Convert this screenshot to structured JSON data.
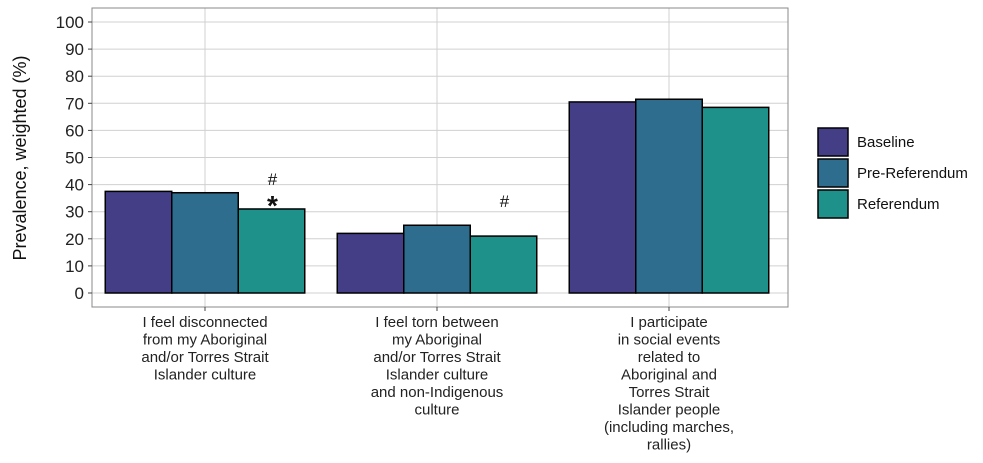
{
  "chart_data": {
    "type": "bar",
    "title": "",
    "xlabel": "",
    "ylabel": "Prevalence, weighted (%)",
    "ylim": [
      0,
      100
    ],
    "yticks": [
      0,
      10,
      20,
      30,
      40,
      50,
      60,
      70,
      80,
      90,
      100
    ],
    "grid": true,
    "legend_position": "right",
    "categories": [
      [
        "I feel disconnected",
        "from my Aboriginal",
        "and/or Torres Strait",
        "Islander culture"
      ],
      [
        "I feel torn between",
        "my Aboriginal",
        "and/or Torres Strait",
        "Islander culture",
        "and non-Indigenous",
        "culture"
      ],
      [
        "I participate",
        "in social events",
        "related to",
        "Aboriginal and",
        "Torres Strait",
        "Islander people",
        "(including marches,",
        "rallies)"
      ]
    ],
    "series": [
      {
        "name": "Baseline",
        "color": "#433e85",
        "values": [
          37.5,
          22.0,
          70.5
        ]
      },
      {
        "name": "Pre-Referendum",
        "color": "#2e6d8e",
        "values": [
          37.0,
          25.0,
          71.5
        ]
      },
      {
        "name": "Referendum",
        "color": "#1f918b",
        "values": [
          31.0,
          21.0,
          68.5
        ]
      }
    ],
    "annotations": [
      {
        "category_index": 0,
        "series_index": 2,
        "symbols": [
          "#",
          "*"
        ]
      },
      {
        "category_index": 1,
        "series_index": 2,
        "symbols": [
          "#"
        ]
      }
    ]
  }
}
